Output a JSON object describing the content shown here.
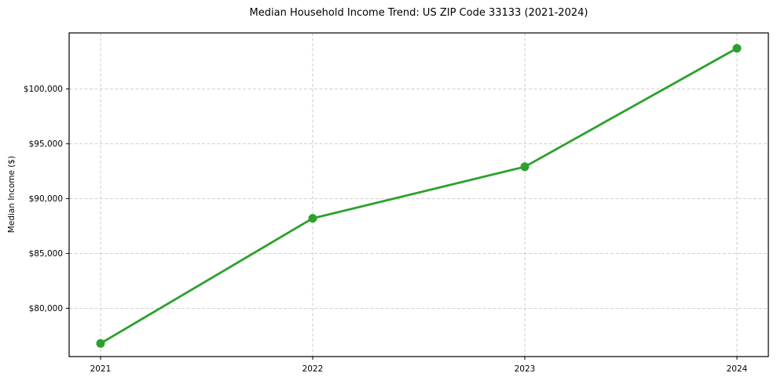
{
  "chart_data": {
    "type": "line",
    "title": "Median Household Income Trend: US ZIP Code 33133 (2021-2024)",
    "xlabel": "",
    "ylabel": "Median Income ($)",
    "categories": [
      "2021",
      "2022",
      "2023",
      "2024"
    ],
    "values": [
      76800,
      88200,
      92900,
      103700
    ],
    "ylim": [
      75600,
      105100
    ],
    "yticks": [
      80000,
      85000,
      90000,
      95000,
      100000
    ],
    "ytick_labels": [
      "$80,000",
      "$85,000",
      "$90,000",
      "$95,000",
      "$100,000"
    ],
    "line_color": "#2ca02c",
    "marker": "circle",
    "marker_color": "#2ca02c",
    "grid": "both",
    "grid_style": "dashed",
    "grid_color": "#c9c9c9",
    "frame_color": "#000000",
    "legend": "none"
  }
}
